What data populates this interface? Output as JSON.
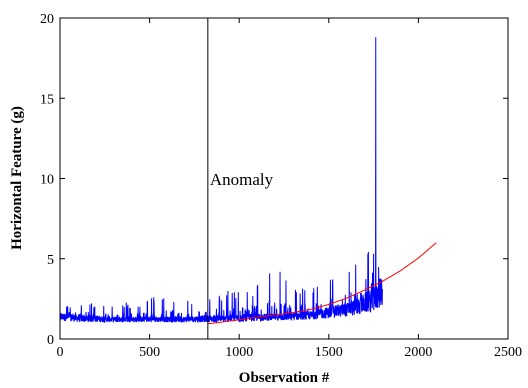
{
  "chart_data": {
    "type": "line",
    "title": "",
    "xlabel": "Observation #",
    "ylabel": "Horizontal Feature (g)",
    "xlim": [
      0,
      2500
    ],
    "ylim": [
      0,
      20
    ],
    "xticks": [
      0,
      500,
      1000,
      1500,
      2000,
      2500
    ],
    "yticks": [
      0,
      5,
      10,
      15,
      20
    ],
    "grid": false,
    "legend": "none",
    "annotations": [
      {
        "text": "Anomaly",
        "x": 825
      }
    ],
    "vline": {
      "x": 825
    },
    "series": [
      {
        "color": "#0000ff",
        "style": "noisy-line",
        "x": [
          0,
          100,
          200,
          300,
          400,
          500,
          600,
          700,
          800,
          900,
          1000,
          1100,
          1200,
          1300,
          1400,
          1500,
          1550,
          1600,
          1650,
          1700,
          1740,
          1760,
          1765,
          1780,
          1800
        ],
        "baseline": [
          1.5,
          1.4,
          1.35,
          1.3,
          1.3,
          1.3,
          1.3,
          1.3,
          1.35,
          1.35,
          1.4,
          1.45,
          1.45,
          1.5,
          1.6,
          1.8,
          1.9,
          2.0,
          2.2,
          2.5,
          2.7,
          2.9,
          3.0,
          3.2,
          3.5
        ],
        "upper_envelope": [
          2.1,
          2.2,
          2.3,
          2.3,
          2.3,
          2.6,
          2.8,
          2.8,
          2.6,
          3.0,
          3.2,
          3.5,
          4.8,
          3.2,
          3.6,
          3.7,
          4.0,
          4.4,
          5.0,
          5.8,
          7.2,
          18.8,
          9.0,
          7.5,
          5.6
        ],
        "lower_envelope": [
          1.1,
          1.0,
          1.0,
          1.0,
          1.0,
          1.0,
          1.0,
          1.0,
          1.0,
          1.0,
          1.0,
          1.05,
          1.1,
          1.1,
          1.15,
          1.2,
          1.25,
          1.3,
          1.35,
          1.45,
          1.5,
          1.6,
          1.6,
          1.7,
          1.8
        ]
      },
      {
        "color": "#ff0000",
        "style": "smooth-trend",
        "x": [
          825,
          900,
          1000,
          1100,
          1200,
          1300,
          1400,
          1500,
          1600,
          1700,
          1800,
          1900,
          2000,
          2100
        ],
        "values": [
          0.95,
          1.05,
          1.2,
          1.35,
          1.5,
          1.65,
          1.85,
          2.15,
          2.55,
          3.05,
          3.6,
          4.25,
          5.05,
          6.0
        ]
      }
    ]
  }
}
